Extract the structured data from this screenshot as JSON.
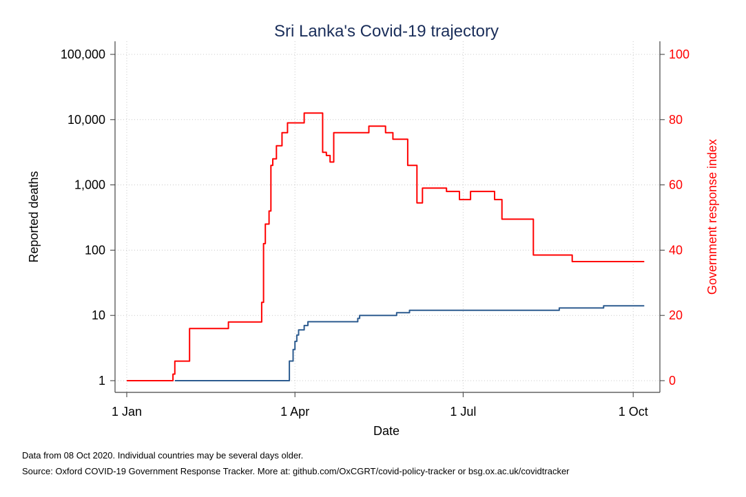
{
  "chart_data": {
    "type": "line",
    "title": "Sri Lanka's Covid-19 trajectory",
    "xlabel": "Date",
    "ylabel_left": "Reported deaths",
    "ylabel_right": "Government response index",
    "x_ticks": [
      "1 Jan",
      "1 Apr",
      "1 Jul",
      "1 Oct"
    ],
    "x_tick_dates": [
      "2020-01-01",
      "2020-04-01",
      "2020-07-01",
      "2020-10-01"
    ],
    "xlim": [
      "2020-01-01",
      "2020-10-08"
    ],
    "y_left": {
      "scale": "log",
      "lim": [
        1,
        100000
      ],
      "ticks": [
        1,
        10,
        100,
        1000,
        10000,
        100000
      ],
      "tick_labels": [
        "1",
        "10",
        "100",
        "1,000",
        "10,000",
        "100,000"
      ]
    },
    "y_right": {
      "scale": "linear",
      "lim": [
        0,
        100
      ],
      "ticks": [
        0,
        20,
        40,
        60,
        80,
        100
      ],
      "tick_labels": [
        "0",
        "20",
        "40",
        "60",
        "80",
        "100"
      ]
    },
    "grid": true,
    "series": [
      {
        "axis": "right",
        "color": "#ff0000",
        "step": true,
        "points": [
          [
            "2020-01-01",
            0
          ],
          [
            "2020-01-25",
            0
          ],
          [
            "2020-01-26",
            2
          ],
          [
            "2020-01-27",
            6
          ],
          [
            "2020-02-04",
            16
          ],
          [
            "2020-02-25",
            18
          ],
          [
            "2020-03-14",
            24
          ],
          [
            "2020-03-15",
            42
          ],
          [
            "2020-03-16",
            48
          ],
          [
            "2020-03-18",
            52
          ],
          [
            "2020-03-19",
            66
          ],
          [
            "2020-03-20",
            68
          ],
          [
            "2020-03-22",
            72
          ],
          [
            "2020-03-25",
            76
          ],
          [
            "2020-03-28",
            79
          ],
          [
            "2020-04-06",
            82
          ],
          [
            "2020-04-16",
            70
          ],
          [
            "2020-04-18",
            69
          ],
          [
            "2020-04-20",
            67
          ],
          [
            "2020-04-22",
            76
          ],
          [
            "2020-05-11",
            78
          ],
          [
            "2020-05-20",
            76
          ],
          [
            "2020-05-24",
            74
          ],
          [
            "2020-06-01",
            66
          ],
          [
            "2020-06-06",
            54.5
          ],
          [
            "2020-06-09",
            59
          ],
          [
            "2020-06-22",
            58
          ],
          [
            "2020-06-29",
            55.5
          ],
          [
            "2020-07-05",
            58
          ],
          [
            "2020-07-18",
            55.5
          ],
          [
            "2020-07-22",
            49.5
          ],
          [
            "2020-08-08",
            38.5
          ],
          [
            "2020-08-29",
            36.5
          ],
          [
            "2020-10-07",
            36.5
          ]
        ]
      },
      {
        "axis": "left",
        "color": "#2c5b8f",
        "step": true,
        "points": [
          [
            "2020-01-27",
            1
          ],
          [
            "2020-03-28",
            1
          ],
          [
            "2020-03-29",
            2
          ],
          [
            "2020-03-31",
            3
          ],
          [
            "2020-04-01",
            4
          ],
          [
            "2020-04-02",
            5
          ],
          [
            "2020-04-03",
            6
          ],
          [
            "2020-04-06",
            7
          ],
          [
            "2020-04-08",
            8
          ],
          [
            "2020-05-05",
            9
          ],
          [
            "2020-05-06",
            10
          ],
          [
            "2020-05-26",
            11
          ],
          [
            "2020-06-02",
            12
          ],
          [
            "2020-08-22",
            13
          ],
          [
            "2020-09-15",
            14
          ],
          [
            "2020-10-07",
            14
          ]
        ]
      }
    ]
  },
  "notes": [
    "Data from 08 Oct 2020. Individual countries may be several days older.",
    "Source: Oxford COVID-19 Government Response Tracker. More at: github.com/OxCGRT/covid-policy-tracker or bsg.ox.ac.uk/covidtracker"
  ]
}
